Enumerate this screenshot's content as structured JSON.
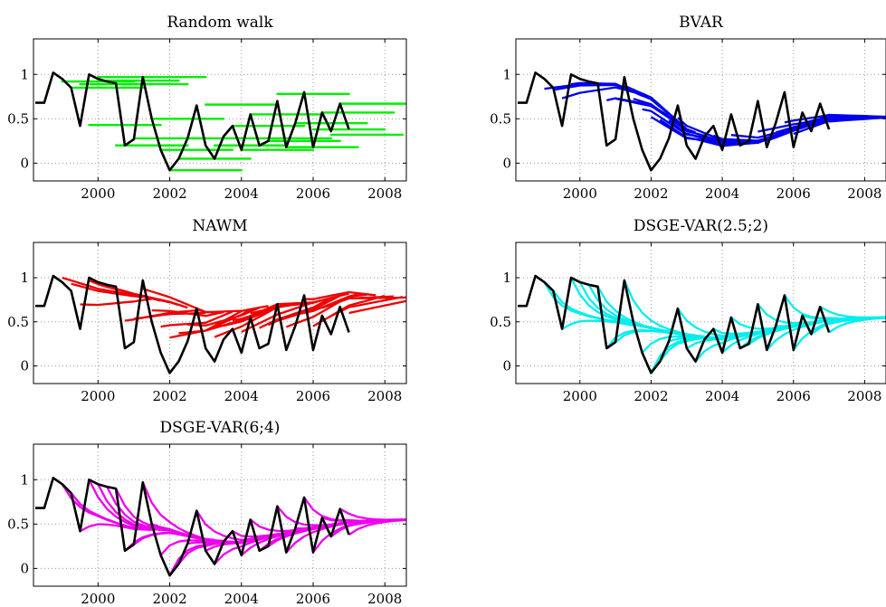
{
  "chart_data": [
    {
      "type": "line",
      "title": "Random walk",
      "xlim": [
        1998.2,
        2008.6
      ],
      "ylim": [
        -0.2,
        1.4
      ],
      "xticks": [
        2000,
        2002,
        2004,
        2006,
        2008
      ],
      "yticks": [
        0,
        0.5,
        1
      ],
      "yticklabels": [
        "0",
        "0.5",
        "1"
      ],
      "grid": true,
      "actual_color": "#000000",
      "forecast_color": "#00ee00",
      "forecast_style": "flat",
      "actual": {
        "x": [
          1998.25,
          1998.5,
          1998.75,
          1999,
          1999.25,
          1999.5,
          1999.75,
          2000,
          2000.25,
          2000.5,
          2000.75,
          2001,
          2001.25,
          2001.5,
          2001.75,
          2002,
          2002.25,
          2002.5,
          2002.75,
          2003,
          2003.25,
          2003.5,
          2003.75,
          2004,
          2004.25,
          2004.5,
          2004.75,
          2005,
          2005.25,
          2005.5,
          2005.75,
          2006,
          2006.25,
          2006.5,
          2006.75,
          2007
        ],
        "y": [
          0.68,
          0.68,
          1.02,
          0.95,
          0.85,
          0.42,
          1.0,
          0.95,
          0.92,
          0.9,
          0.2,
          0.27,
          0.97,
          0.5,
          0.15,
          -0.08,
          0.05,
          0.28,
          0.65,
          0.2,
          0.05,
          0.3,
          0.42,
          0.15,
          0.55,
          0.2,
          0.25,
          0.7,
          0.18,
          0.45,
          0.8,
          0.18,
          0.57,
          0.36,
          0.67,
          0.38
        ]
      },
      "forecasts": [
        {
          "x0": 1999.0,
          "x1": 2001.0,
          "y": 0.92
        },
        {
          "x0": 1999.25,
          "x1": 2001.25,
          "y": 0.85
        },
        {
          "x0": 1999.5,
          "x1": 2001.5,
          "y": 0.89
        },
        {
          "x0": 2000.0,
          "x1": 2003.0,
          "y": 0.97
        },
        {
          "x0": 2000.25,
          "x1": 2002.25,
          "y": 0.93
        },
        {
          "x0": 2000.75,
          "x1": 2002.5,
          "y": 0.89
        },
        {
          "x0": 1999.75,
          "x1": 2001.75,
          "y": 0.43
        },
        {
          "x0": 2000.5,
          "x1": 2002.5,
          "y": 0.2
        },
        {
          "x0": 2001.0,
          "x1": 2003.0,
          "y": 0.28
        },
        {
          "x0": 2001.5,
          "x1": 2003.5,
          "y": 0.5
        },
        {
          "x0": 2001.75,
          "x1": 2003.75,
          "y": 0.15
        },
        {
          "x0": 2002.0,
          "x1": 2004.0,
          "y": -0.08
        },
        {
          "x0": 2002.25,
          "x1": 2004.25,
          "y": 0.05
        },
        {
          "x0": 2002.5,
          "x1": 2004.5,
          "y": 0.28
        },
        {
          "x0": 2003.0,
          "x1": 2005.0,
          "y": 0.66
        },
        {
          "x0": 2003.25,
          "x1": 2005.25,
          "y": 0.2
        },
        {
          "x0": 2003.75,
          "x1": 2005.75,
          "y": 0.42
        },
        {
          "x0": 2004.0,
          "x1": 2006.0,
          "y": 0.15
        },
        {
          "x0": 2004.25,
          "x1": 2006.25,
          "y": 0.55
        },
        {
          "x0": 2004.5,
          "x1": 2006.5,
          "y": 0.28
        },
        {
          "x0": 2004.75,
          "x1": 2006.75,
          "y": 0.25
        },
        {
          "x0": 2005.0,
          "x1": 2007.0,
          "y": 0.78
        },
        {
          "x0": 2005.25,
          "x1": 2007.25,
          "y": 0.18
        },
        {
          "x0": 2005.5,
          "x1": 2007.5,
          "y": 0.45
        },
        {
          "x0": 2006.0,
          "x1": 2008.0,
          "y": 0.38
        },
        {
          "x0": 2006.25,
          "x1": 2008.25,
          "y": 0.57
        },
        {
          "x0": 2006.5,
          "x1": 2008.5,
          "y": 0.32
        },
        {
          "x0": 2006.75,
          "x1": 2008.6,
          "y": 0.67
        }
      ]
    },
    {
      "type": "line",
      "title": "BVAR",
      "xlim": [
        1998.2,
        2008.6
      ],
      "ylim": [
        -0.2,
        1.4
      ],
      "xticks": [
        2000,
        2002,
        2004,
        2006,
        2008
      ],
      "yticks": [
        0,
        0.5,
        1
      ],
      "yticklabels": [
        "0",
        "0.5",
        "1"
      ],
      "grid": true,
      "actual_color": "#000000",
      "forecast_color": "#0000ee",
      "forecast_style": "drift",
      "forecast_params": {
        "start": 1999.0,
        "end": 2007.0,
        "step": 0.25,
        "horizon": 2.0,
        "amp": 0.25
      },
      "anchor": {
        "x": [
          1999,
          2000,
          2001,
          2002,
          2003,
          2004,
          2005,
          2006,
          2007,
          2008.6
        ],
        "y": [
          0.8,
          0.87,
          0.88,
          0.72,
          0.38,
          0.24,
          0.24,
          0.38,
          0.5,
          0.52
        ]
      },
      "actual": {
        "x": [
          1998.25,
          1998.5,
          1998.75,
          1999,
          1999.25,
          1999.5,
          1999.75,
          2000,
          2000.25,
          2000.5,
          2000.75,
          2001,
          2001.25,
          2001.5,
          2001.75,
          2002,
          2002.25,
          2002.5,
          2002.75,
          2003,
          2003.25,
          2003.5,
          2003.75,
          2004,
          2004.25,
          2004.5,
          2004.75,
          2005,
          2005.25,
          2005.5,
          2005.75,
          2006,
          2006.25,
          2006.5,
          2006.75,
          2007
        ],
        "y": [
          0.68,
          0.68,
          1.02,
          0.95,
          0.85,
          0.42,
          1.0,
          0.95,
          0.92,
          0.9,
          0.2,
          0.27,
          0.97,
          0.5,
          0.15,
          -0.08,
          0.05,
          0.28,
          0.65,
          0.2,
          0.05,
          0.3,
          0.42,
          0.15,
          0.55,
          0.2,
          0.25,
          0.7,
          0.18,
          0.45,
          0.8,
          0.18,
          0.57,
          0.36,
          0.67,
          0.38
        ]
      }
    },
    {
      "type": "line",
      "title": "NAWM",
      "xlim": [
        1998.2,
        2008.6
      ],
      "ylim": [
        -0.2,
        1.4
      ],
      "xticks": [
        2000,
        2002,
        2004,
        2006,
        2008
      ],
      "yticks": [
        0,
        0.5,
        1
      ],
      "yticklabels": [
        "0",
        "0.5",
        "1"
      ],
      "grid": true,
      "actual_color": "#000000",
      "forecast_color": "#ee0000",
      "forecast_style": "drift",
      "forecast_params": {
        "start": 1999.0,
        "end": 2007.0,
        "step": 0.25,
        "horizon": 2.0,
        "amp": 0.5
      },
      "anchor": {
        "x": [
          1999,
          2000,
          2001,
          2002,
          2003,
          2004,
          2005,
          2006,
          2007,
          2008.6
        ],
        "y": [
          1.05,
          0.9,
          0.8,
          0.72,
          0.6,
          0.62,
          0.7,
          0.72,
          0.82,
          0.78
        ]
      },
      "actual": {
        "x": [
          1998.25,
          1998.5,
          1998.75,
          1999,
          1999.25,
          1999.5,
          1999.75,
          2000,
          2000.25,
          2000.5,
          2000.75,
          2001,
          2001.25,
          2001.5,
          2001.75,
          2002,
          2002.25,
          2002.5,
          2002.75,
          2003,
          2003.25,
          2003.5,
          2003.75,
          2004,
          2004.25,
          2004.5,
          2004.75,
          2005,
          2005.25,
          2005.5,
          2005.75,
          2006,
          2006.25,
          2006.5,
          2006.75,
          2007
        ],
        "y": [
          0.68,
          0.68,
          1.02,
          0.95,
          0.85,
          0.42,
          1.0,
          0.95,
          0.92,
          0.9,
          0.2,
          0.27,
          0.97,
          0.5,
          0.15,
          -0.08,
          0.05,
          0.28,
          0.65,
          0.2,
          0.05,
          0.3,
          0.42,
          0.15,
          0.55,
          0.2,
          0.25,
          0.7,
          0.18,
          0.45,
          0.8,
          0.18,
          0.57,
          0.36,
          0.67,
          0.38
        ]
      }
    },
    {
      "type": "line",
      "title": "DSGE-VAR(2.5;2)",
      "xlim": [
        1998.2,
        2008.6
      ],
      "ylim": [
        -0.2,
        1.4
      ],
      "xticks": [
        2000,
        2002,
        2004,
        2006,
        2008
      ],
      "yticks": [
        0,
        0.5,
        1
      ],
      "yticklabels": [
        "0",
        "0.5",
        "1"
      ],
      "grid": true,
      "actual_color": "#000000",
      "forecast_color": "#00eeee",
      "forecast_style": "converge",
      "forecast_params": {
        "start": 1999.0,
        "end": 2007.0,
        "step": 0.25,
        "horizon": 2.0,
        "rate": 2.2
      },
      "anchor": {
        "x": [
          1999,
          2000,
          2001,
          2002,
          2003,
          2004,
          2005,
          2006,
          2007,
          2008.6
        ],
        "y": [
          0.55,
          0.55,
          0.5,
          0.42,
          0.35,
          0.32,
          0.38,
          0.45,
          0.52,
          0.55
        ]
      },
      "actual": {
        "x": [
          1998.25,
          1998.5,
          1998.75,
          1999,
          1999.25,
          1999.5,
          1999.75,
          2000,
          2000.25,
          2000.5,
          2000.75,
          2001,
          2001.25,
          2001.5,
          2001.75,
          2002,
          2002.25,
          2002.5,
          2002.75,
          2003,
          2003.25,
          2003.5,
          2003.75,
          2004,
          2004.25,
          2004.5,
          2004.75,
          2005,
          2005.25,
          2005.5,
          2005.75,
          2006,
          2006.25,
          2006.5,
          2006.75,
          2007
        ],
        "y": [
          0.68,
          0.68,
          1.02,
          0.95,
          0.85,
          0.42,
          1.0,
          0.95,
          0.92,
          0.9,
          0.2,
          0.27,
          0.97,
          0.5,
          0.15,
          -0.08,
          0.05,
          0.28,
          0.65,
          0.2,
          0.05,
          0.3,
          0.42,
          0.15,
          0.55,
          0.2,
          0.25,
          0.7,
          0.18,
          0.45,
          0.8,
          0.18,
          0.57,
          0.36,
          0.67,
          0.38
        ]
      }
    },
    {
      "type": "line",
      "title": "DSGE-VAR(6;4)",
      "xlim": [
        1998.2,
        2008.6
      ],
      "ylim": [
        -0.2,
        1.4
      ],
      "xticks": [
        2000,
        2002,
        2004,
        2006,
        2008
      ],
      "yticks": [
        0,
        0.5,
        1
      ],
      "yticklabels": [
        "0",
        "0.5",
        "1"
      ],
      "grid": true,
      "actual_color": "#000000",
      "forecast_color": "#ee00ee",
      "forecast_style": "converge",
      "forecast_params": {
        "start": 1999.0,
        "end": 2007.0,
        "step": 0.25,
        "horizon": 2.0,
        "rate": 2.2
      },
      "anchor": {
        "x": [
          1999,
          2000,
          2001,
          2002,
          2003,
          2004,
          2005,
          2006,
          2007,
          2008.6
        ],
        "y": [
          0.6,
          0.55,
          0.45,
          0.42,
          0.32,
          0.3,
          0.38,
          0.45,
          0.52,
          0.55
        ]
      },
      "actual": {
        "x": [
          1998.25,
          1998.5,
          1998.75,
          1999,
          1999.25,
          1999.5,
          1999.75,
          2000,
          2000.25,
          2000.5,
          2000.75,
          2001,
          2001.25,
          2001.5,
          2001.75,
          2002,
          2002.25,
          2002.5,
          2002.75,
          2003,
          2003.25,
          2003.5,
          2003.75,
          2004,
          2004.25,
          2004.5,
          2004.75,
          2005,
          2005.25,
          2005.5,
          2005.75,
          2006,
          2006.25,
          2006.5,
          2006.75,
          2007
        ],
        "y": [
          0.68,
          0.68,
          1.02,
          0.95,
          0.85,
          0.42,
          1.0,
          0.95,
          0.92,
          0.9,
          0.2,
          0.27,
          0.97,
          0.5,
          0.15,
          -0.08,
          0.05,
          0.28,
          0.65,
          0.2,
          0.05,
          0.3,
          0.42,
          0.15,
          0.55,
          0.2,
          0.25,
          0.7,
          0.18,
          0.45,
          0.8,
          0.18,
          0.57,
          0.36,
          0.67,
          0.38
        ]
      }
    }
  ]
}
